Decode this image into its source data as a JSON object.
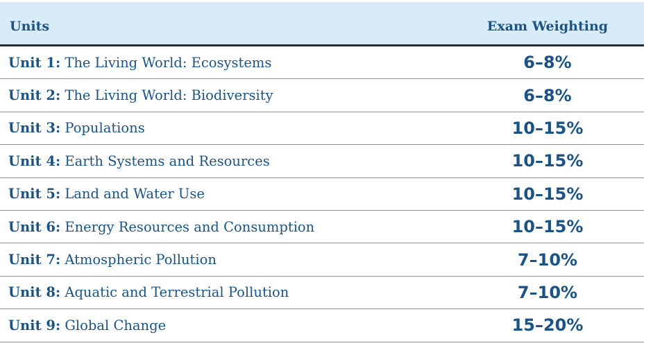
{
  "table": {
    "headers": {
      "units": "Units",
      "weighting": "Exam Weighting"
    },
    "rows": [
      {
        "unit": "Unit 1:",
        "title": "The Living World: Ecosystems",
        "weighting": "6–8%"
      },
      {
        "unit": "Unit 2:",
        "title": "The Living World: Biodiversity",
        "weighting": "6–8%"
      },
      {
        "unit": "Unit 3:",
        "title": "Populations",
        "weighting": "10–15%"
      },
      {
        "unit": "Unit 4:",
        "title": "Earth Systems and Resources",
        "weighting": "10–15%"
      },
      {
        "unit": "Unit 5:",
        "title": "Land and Water Use",
        "weighting": "10–15%"
      },
      {
        "unit": "Unit 6:",
        "title": "Energy Resources and Consumption",
        "weighting": "10–15%"
      },
      {
        "unit": "Unit 7:",
        "title": "Atmospheric Pollution",
        "weighting": "7–10%"
      },
      {
        "unit": "Unit 8:",
        "title": "Aquatic and Terrestrial Pollution",
        "weighting": "7–10%"
      },
      {
        "unit": "Unit 9:",
        "title": "Global Change",
        "weighting": "15–20%"
      }
    ]
  },
  "colors": {
    "header_background": "#d8ebf9",
    "text": "#1b5385",
    "header_rule": "#1f2a33",
    "row_divider": "#8a8f94"
  }
}
